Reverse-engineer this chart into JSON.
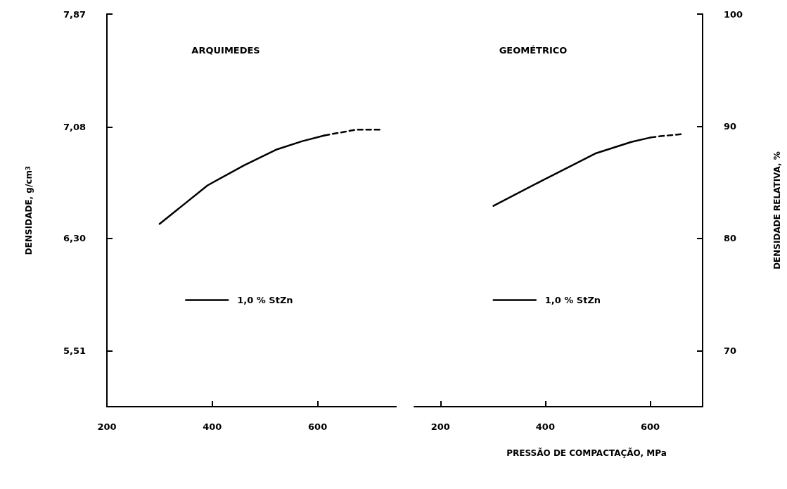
{
  "chart_data": [
    {
      "type": "line",
      "title": "ARQUIMEDES",
      "ylabel": "DENSIDADE, g/cm$^{3}$",
      "xlim": [
        200,
        750
      ],
      "xticks": [
        200,
        400,
        600
      ],
      "ylim": [
        5.12,
        7.87
      ],
      "yticks": [
        {
          "value": 5.51,
          "label": "5,51"
        },
        {
          "value": 6.3,
          "label": "6,30"
        },
        {
          "value": 7.08,
          "label": "7,08"
        },
        {
          "value": 7.87,
          "label": "7,87"
        }
      ],
      "grid": false,
      "marker": "none",
      "legend": "bottom",
      "series": [
        {
          "name": "1,0 % StZn",
          "color": "#000000",
          "line_style": "solid",
          "x": [
            300,
            391,
            460,
            521,
            571,
            613
          ],
          "values": [
            6.4,
            6.67,
            6.81,
            6.92,
            6.98,
            7.02
          ]
        },
        {
          "color": "#000000",
          "line_style": "dashed",
          "x": [
            613,
            628,
            673,
            720
          ],
          "values": [
            7.02,
            7.03,
            7.06,
            7.06
          ]
        }
      ]
    },
    {
      "type": "line",
      "title": "GEOMÉTRICO",
      "xlabel": "PRESSÃO DE COMPACTAÇÃO, MPa",
      "y2label": "DENSIDADE RELATIVA, %",
      "xlim": [
        150,
        700
      ],
      "xticks": [
        200,
        400,
        600
      ],
      "y2lim": [
        65,
        100
      ],
      "y2ticks": [
        70,
        80,
        90,
        100
      ],
      "grid": false,
      "marker": "none",
      "legend": "bottom",
      "series": [
        {
          "name": "1,0 % StZn",
          "color": "#000000",
          "line_style": "solid",
          "axis": "y2",
          "x": [
            301,
            404,
            497,
            564,
            601
          ],
          "values": [
            82.9,
            85.4,
            87.6,
            88.6,
            89.0
          ]
        },
        {
          "color": "#000000",
          "line_style": "dashed",
          "axis": "y2",
          "x": [
            601,
            617,
            661
          ],
          "values": [
            89.0,
            89.1,
            89.3
          ]
        }
      ]
    }
  ]
}
